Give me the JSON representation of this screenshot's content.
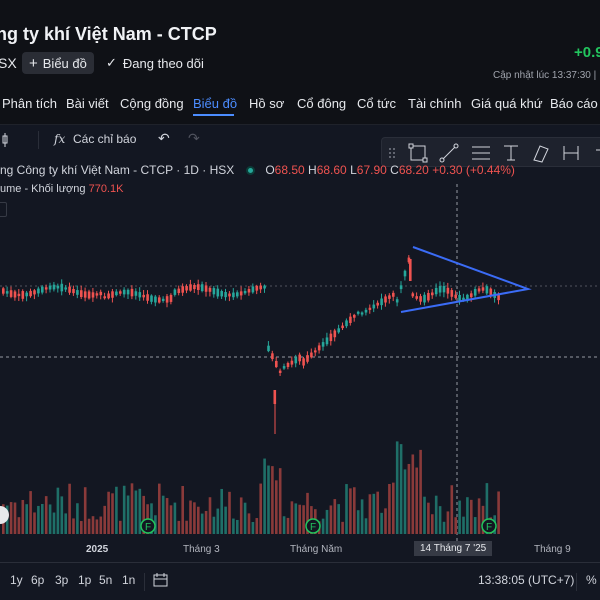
{
  "header": {
    "title": "ng ty khí Việt Nam - CTCP",
    "change": "+0.9",
    "exchange": "SX",
    "chart_button": "Biểu đồ",
    "follow_label": "Đang theo dõi",
    "updated": "Cập nhật lúc 13:37:30 |"
  },
  "nav": {
    "items": [
      "Phân tích",
      "Bài viết",
      "Cộng đồng",
      "Biểu đồ",
      "Hồ sơ",
      "Cổ đông",
      "Cổ tức",
      "Tài chính",
      "Giá quá khứ",
      "Báo cáo"
    ],
    "active": "Biểu đồ"
  },
  "toolbar": {
    "indicators": "Các chỉ báo"
  },
  "legend": {
    "symbol": "ng Công ty khí Việt Nam - CTCP · 1D · HSX",
    "open_label": "O",
    "open": "68.50",
    "high_label": "H",
    "high": "68.60",
    "low_label": "L",
    "low": "67.90",
    "close_label": "C",
    "close": "68.20",
    "change": "+0.30 (+0.44%)",
    "volume_label": "ume - Khối lượng",
    "volume": "770.1K"
  },
  "time_axis": [
    "2025",
    "Tháng 3",
    "Tháng Năm",
    "14 Tháng 7 '25",
    "Tháng 9"
  ],
  "periods": [
    "1y",
    "6p",
    "3p",
    "1p",
    "5n",
    "1n"
  ],
  "clock": "13:38:05 (UTC+7)",
  "colors": {
    "up": "#26a69a",
    "down": "#ef5350",
    "accent": "#4c8dff",
    "positive": "#22c55e"
  },
  "chart_data": {
    "type": "candlestick",
    "title": "ng Công ty khí Việt Nam - CTCP · 1D · HSX",
    "dividend_markers": [
      "F",
      "F",
      "F"
    ]
  }
}
